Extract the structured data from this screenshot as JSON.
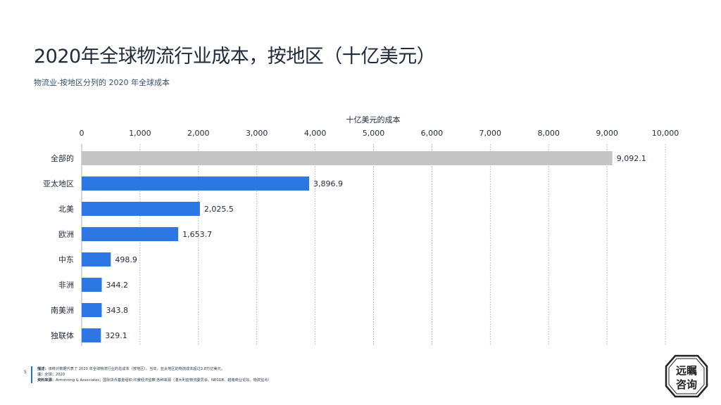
{
  "header": {
    "title": "2020年全球物流行业成本，按地区（十亿美元）",
    "subtitle": "物流业-按地区分列的 2020 年全球成本"
  },
  "chart_data": {
    "type": "bar",
    "orientation": "horizontal",
    "axis_title": "十亿美元的成本",
    "categories": [
      "全部的",
      "亚太地区",
      "北美",
      "欧洲",
      "中东",
      "非洲",
      "南美洲",
      "独联体"
    ],
    "values": [
      9092.1,
      3896.9,
      2025.5,
      1653.7,
      498.9,
      344.2,
      343.8,
      329.1
    ],
    "value_labels": [
      "9,092.1",
      "3,896.9",
      "2,025.5",
      "1,653.7",
      "498.9",
      "344.2",
      "343.8",
      "329.1"
    ],
    "xlim": [
      0,
      10000
    ],
    "ticks": [
      0,
      1000,
      2000,
      3000,
      4000,
      5000,
      6000,
      7000,
      8000,
      9000,
      10000
    ],
    "tick_labels": [
      "0",
      "1,000",
      "2,000",
      "3,000",
      "4,000",
      "5,000",
      "6,000",
      "7,000",
      "8,000",
      "9,000",
      "10,000"
    ],
    "axis_position": "top",
    "grid": true,
    "colors": {
      "total": "#c4c4c4",
      "region": "#2b78e4"
    }
  },
  "footer": {
    "page_number": "5",
    "description_label": "描述：",
    "description_text": "该统计数据代表了 2020 年全球物流行业的总成本（按地区）。当年，亚太地区的物流成本超过3.8万亿美元。",
    "note_label": "注：",
    "note_text": "全球；2020",
    "source_label": "资料来源：",
    "source_text": "Armstrong & Associates；国际货币基金组织;印度经济监察;各种来源（澳大利亚物流委员会、NESDB、越南商业论坛、物流监点）"
  },
  "logo": {
    "text_top": "远瞩",
    "text_bottom": "咨询"
  }
}
